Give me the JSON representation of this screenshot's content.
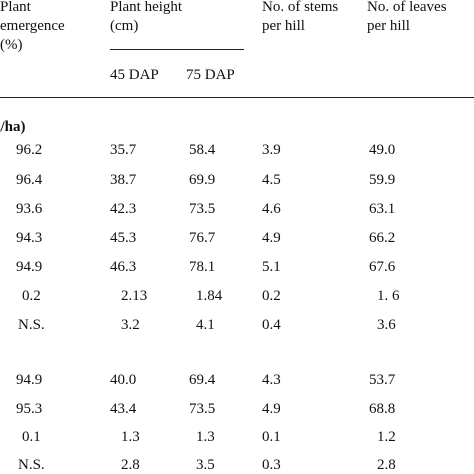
{
  "headers": {
    "plant_emergence": "Plant\nemergence\n(%)",
    "plant_height": "Plant height\n(cm)",
    "stems": "No. of stems\nper hill",
    "leaves": "No. of leaves\nper hill",
    "sub_45": "45 DAP",
    "sub_75": "75 DAP"
  },
  "section_label": "g/ha)",
  "rows": [
    [
      "96.2",
      "35.7",
      "58.4",
      "3.9",
      "49.0"
    ],
    [
      "96.4",
      "38.7",
      "69.9",
      "4.5",
      "59.9"
    ],
    [
      "93.6",
      "42.3",
      "73.5",
      "4.6",
      "63.1"
    ],
    [
      "94.3",
      "45.3",
      "76.7",
      "4.9",
      "66.2"
    ],
    [
      "94.9",
      "46.3",
      "78.1",
      "5.1",
      "67.6"
    ],
    [
      "0.2",
      "2.13",
      "1.84",
      "0.2",
      "1. 6"
    ],
    [
      "N.S.",
      "3.2",
      "4.1",
      "0.4",
      "3.6"
    ],
    [
      "94.9",
      "40.0",
      "69.4",
      "4.3",
      "53.7"
    ],
    [
      "95.3",
      "43.4",
      "73.5",
      "4.9",
      "68.8"
    ],
    [
      "0.1",
      "1.3",
      "1.3",
      "0.1",
      "1.2"
    ],
    [
      "N.S.",
      "2.8",
      "3.5",
      "0.3",
      "2.8"
    ]
  ]
}
